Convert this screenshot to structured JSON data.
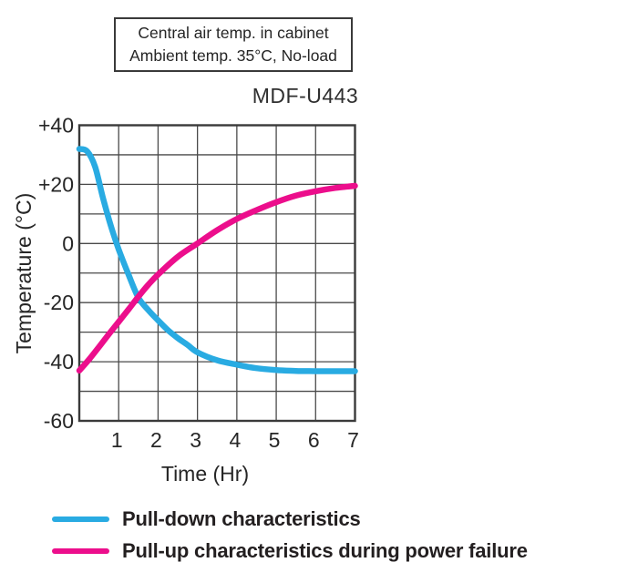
{
  "conditions_box": {
    "line1": "Central air temp. in cabinet",
    "line2": "Ambient temp. 35°C, No-load"
  },
  "chart_data": {
    "type": "line",
    "title": "MDF-U443",
    "xlabel": "Time (Hr)",
    "ylabel": "Temperature (°C)",
    "xlim": [
      0,
      7
    ],
    "ylim": [
      -60,
      40
    ],
    "xticks": {
      "values": [
        1,
        2,
        3,
        4,
        5,
        6,
        7
      ],
      "labels": [
        "1",
        "2",
        "3",
        "4",
        "5",
        "6",
        "7"
      ]
    },
    "yticks": {
      "values": [
        40,
        20,
        0,
        -20,
        -40,
        -60
      ],
      "labels": [
        "+40",
        "+20",
        "0",
        "-20",
        "-40",
        "-60"
      ]
    },
    "grid": {
      "show": true,
      "x_step_hr": 1,
      "y_step_degC": 10,
      "color": "#4a4a4a"
    },
    "axis_color": "#3a3a3a",
    "legend_position": "bottom-left",
    "series": [
      {
        "name": "Pull-down characteristics",
        "color": "#29abe2",
        "x_unit": "Hr",
        "y_unit": "°C",
        "points": [
          [
            0,
            32
          ],
          [
            0.2,
            31.2
          ],
          [
            0.4,
            26
          ],
          [
            0.6,
            15.5
          ],
          [
            0.8,
            6
          ],
          [
            1,
            -2
          ],
          [
            1.25,
            -10.5
          ],
          [
            1.5,
            -18.3
          ],
          [
            1.75,
            -22.5
          ],
          [
            2,
            -26
          ],
          [
            2.25,
            -29.3
          ],
          [
            2.5,
            -32
          ],
          [
            2.75,
            -34.3
          ],
          [
            3,
            -36.8
          ],
          [
            3.5,
            -39.5
          ],
          [
            4,
            -41
          ],
          [
            4.5,
            -42.2
          ],
          [
            5,
            -42.8
          ],
          [
            5.5,
            -43.1
          ],
          [
            6,
            -43.2
          ],
          [
            6.5,
            -43.2
          ],
          [
            7,
            -43.2
          ]
        ]
      },
      {
        "name": "Pull-up characteristics during power failure",
        "color": "#ec0e8c",
        "x_unit": "Hr",
        "y_unit": "°C",
        "points": [
          [
            0,
            -43
          ],
          [
            0.25,
            -39.2
          ],
          [
            0.5,
            -35
          ],
          [
            0.75,
            -30.7
          ],
          [
            1,
            -26.5
          ],
          [
            1.25,
            -22.3
          ],
          [
            1.5,
            -18
          ],
          [
            1.75,
            -14
          ],
          [
            2,
            -10.5
          ],
          [
            2.5,
            -4.5
          ],
          [
            3,
            0
          ],
          [
            3.5,
            4.5
          ],
          [
            4,
            8.3
          ],
          [
            4.5,
            11.3
          ],
          [
            5,
            14
          ],
          [
            5.5,
            16.2
          ],
          [
            6,
            17.7
          ],
          [
            6.5,
            18.8
          ],
          [
            7,
            19.5
          ]
        ]
      }
    ]
  }
}
